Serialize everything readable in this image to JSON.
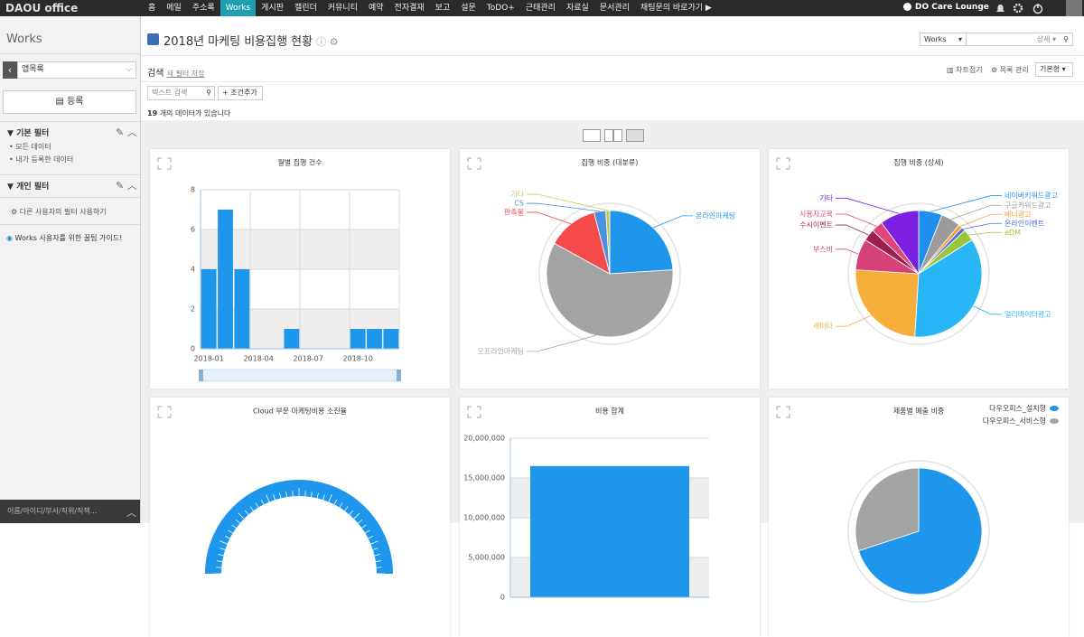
{
  "top_nav": {
    "logo": "DAOU office",
    "menu": [
      "홈",
      "메일",
      "주소록",
      "Works",
      "게시판",
      "캘린더",
      "커뮤니티",
      "예약",
      "전자결재",
      "보고",
      "설문",
      "ToDO+",
      "근태관리",
      "자료실",
      "문서관리",
      "채팅문의 바로가기 ▶"
    ],
    "active": "Works",
    "user": "DO Care Lounge"
  },
  "sidebar": {
    "title": "Works",
    "app_select": "앱목록",
    "register": "등록",
    "basic_filter": {
      "title": "기본 필터",
      "items": [
        "모든 데이터",
        "내가 등록한 데이터"
      ]
    },
    "personal_filter": {
      "title": "개인 필터"
    },
    "other_filter": "다른 사용자의 필터 사용하기",
    "guide": "Works 사용자를 위한 꿀팁 가이드!",
    "user_search": "이름/아이디/부서/직위/직책..."
  },
  "page_header": {
    "title": "2018년 마케팅 비용집행 현황",
    "search_scope": "Works",
    "search_detail": "상세"
  },
  "toolbar": {
    "search_label": "검색",
    "save_filter": "새 필터 저장",
    "chart_toggle": "차트접기",
    "list_manage": "목록 관리",
    "view_type": "기본형",
    "text_search": "텍스트 검색",
    "add_condition": "+ 조건추가",
    "count": 19,
    "count_text": "개의 데이터가 있습니다"
  },
  "widgets": [
    {
      "chart_data": {
        "type": "bar",
        "title": "월별 집행 건수",
        "categories": [
          "2018-01",
          null,
          null,
          "2018-04",
          null,
          null,
          "2018-07",
          null,
          null,
          "2018-10",
          null,
          null
        ],
        "values": [
          4,
          7,
          4,
          0,
          0,
          1,
          0,
          0,
          0,
          1,
          1,
          1
        ],
        "color": "#1e96ec",
        "ylim": [
          0,
          8
        ],
        "yticks": [
          0,
          2,
          4,
          6,
          8
        ],
        "grid": true
      }
    },
    {
      "chart_data": {
        "type": "pie",
        "title": "집행 비중 (대분류)",
        "categories": [
          "온라인마케팅",
          "오프라인마케팅",
          "판촉물",
          "CS",
          "기타"
        ],
        "values": [
          24,
          59,
          13,
          3,
          1
        ],
        "colors": [
          "#1e96ec",
          "#a3a3a3",
          "#f44a4a",
          "#4a8fe0",
          "#c8c84a"
        ]
      }
    },
    {
      "chart_data": {
        "type": "pie",
        "title": "집행 비중 (상세)",
        "categories": [
          "네이버키워드광고",
          "구글키워드광고",
          "배너광고",
          "온라인이벤트",
          "eDM",
          "얼리바이터광고",
          "세미나",
          "부스비",
          "수시이벤트",
          "사용자교육",
          "기타"
        ],
        "values": [
          6,
          5,
          1,
          1,
          3,
          35,
          25,
          8,
          3,
          3,
          10
        ],
        "colors": [
          "#1e8ff0",
          "#9c9c9c",
          "#f39c3c",
          "#4a6fe0",
          "#9bc53d",
          "#29b6f6",
          "#f6ad3a",
          "#d6417a",
          "#9c1f4f",
          "#e0457b",
          "#7b1fe0"
        ]
      }
    },
    {
      "chart_data": {
        "type": "gauge",
        "title": "Cloud 부문 마케팅비용 소진율",
        "color": "#1e96ec"
      }
    },
    {
      "chart_data": {
        "type": "bar",
        "title": "비용 합계",
        "values": [
          16500000
        ],
        "color": "#1e96ec",
        "ylim": [
          0,
          20000000
        ],
        "yticks": [
          {
            "value": 0,
            "label": "0"
          },
          {
            "value": 5000000,
            "label": "5,000,000"
          },
          {
            "value": 10000000,
            "label": "10,000,000"
          },
          {
            "value": 15000000,
            "label": "15,000,000"
          },
          {
            "value": 20000000,
            "label": "20,000,000"
          }
        ],
        "grid": true
      }
    },
    {
      "chart_data": {
        "type": "pie",
        "title": "제품별 매출 비중",
        "categories": [
          "다우오피스_설치형",
          "다우오피스_서비스형"
        ],
        "values": [
          70,
          30
        ],
        "colors": [
          "#1e96ec",
          "#a3a3a3"
        ],
        "legend": "top-right"
      }
    }
  ]
}
